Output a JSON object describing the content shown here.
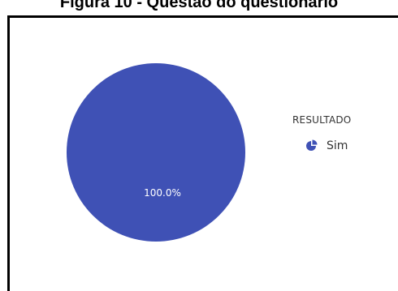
{
  "figure_title": "Figura 10 - Questão do questionário",
  "legend": {
    "title": "RESULTADO",
    "icon": "pie-chart-icon"
  },
  "colors": {
    "slice": "#3f51b5",
    "slice_label": "#ffffff",
    "frame": "#000000"
  },
  "chart_data": {
    "type": "pie",
    "title": "Figura 10 - Questão do questionário",
    "categories": [
      "Sim"
    ],
    "values": [
      100.0
    ],
    "labels": [
      "100.0%"
    ],
    "legend_title": "RESULTADO",
    "legend_position": "right"
  }
}
